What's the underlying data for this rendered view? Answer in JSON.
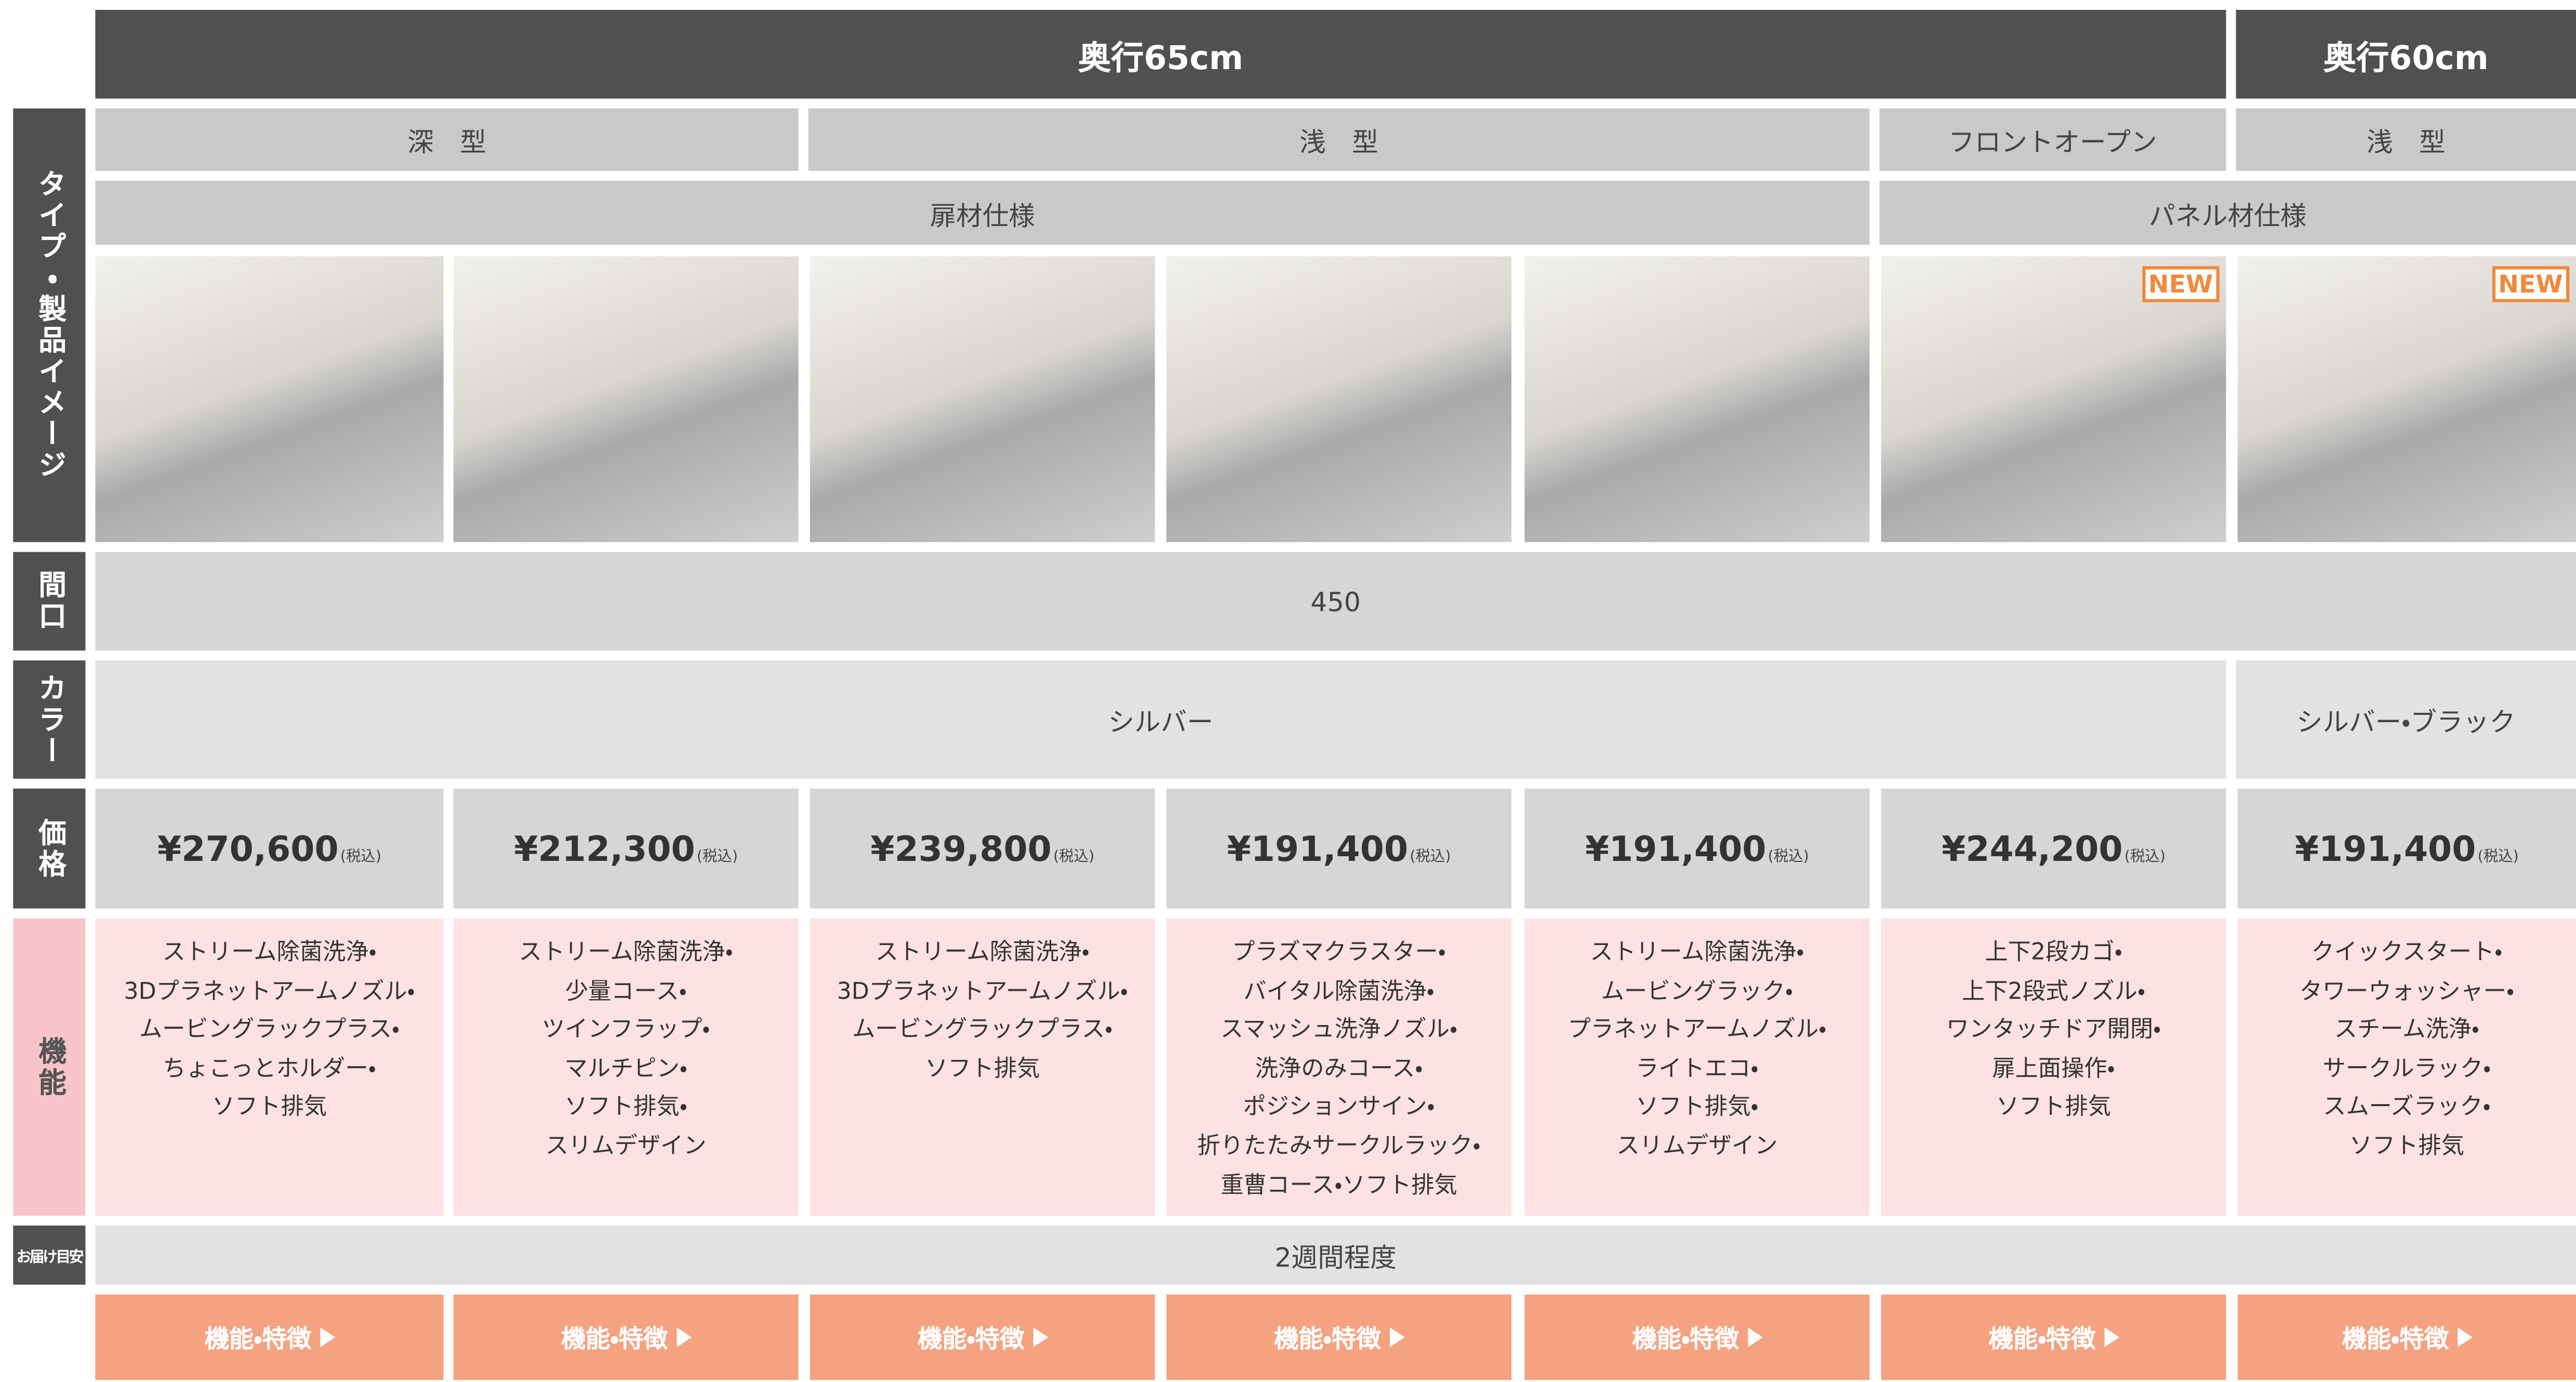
{
  "row_labels": [
    "タイプ・製品イメージ",
    "間口",
    "カラー",
    "価格",
    "機能",
    "お届け目安"
  ],
  "depths": [
    "奥行65cm",
    "奥行60cm"
  ],
  "types": [
    "深　型",
    "浅　型",
    "フロントオープン",
    "浅　型"
  ],
  "finishes": [
    "扉材仕様",
    "パネル材仕様"
  ],
  "width": "450",
  "colors": [
    "シルバー",
    "シルバー・ブラック"
  ],
  "delivery": "2週間程度",
  "products": [
    {
      "price": "¥270,600",
      "tax": "(税込)",
      "features": [
        "ストリーム除菌洗浄・",
        "3Dプラネットアームノズル・",
        "ムービングラックプラス・",
        "ちょこっとホルダー・",
        "ソフト排気"
      ],
      "button": "機能・特徴"
    },
    {
      "price": "¥212,300",
      "tax": "(税込)",
      "features": [
        "ストリーム除菌洗浄・",
        "少量コース・",
        "ツインフラップ・",
        "マルチピン・",
        "ソフト排気・",
        "スリムデザイン"
      ],
      "button": "機能・特徴"
    },
    {
      "price": "¥239,800",
      "tax": "(税込)",
      "features": [
        "ストリーム除菌洗浄・",
        "3Dプラネットアームノズル・",
        "ムービングラックプラス・",
        "ソフト排気"
      ],
      "button": "機能・特徴"
    },
    {
      "price": "¥191,400",
      "tax": "(税込)",
      "features": [
        "プラズマクラスター・",
        "バイタル除菌洗浄・",
        "スマッシュ洗浄ノズル・",
        "洗浄のみコース・",
        "ポジションサイン・",
        "折りたたみサークルラック・",
        "重曹コース・ソフト排気"
      ],
      "button": "機能・特徴"
    },
    {
      "price": "¥191,400",
      "tax": "(税込)",
      "features": [
        "ストリーム除菌洗浄・",
        "ムービングラック・",
        "プラネットアームノズル・",
        "ライトエコ・",
        "ソフト排気・",
        "スリムデザイン"
      ],
      "button": "機能・特徴"
    },
    {
      "price": "¥244,200",
      "tax": "(税込)",
      "badge": "NEW",
      "features": [
        "上下2段カゴ・",
        "上下2段式ノズル・",
        "ワンタッチドア開閉・",
        "扉上面操作・",
        "ソフト排気"
      ],
      "button": "機能・特徴"
    },
    {
      "price": "¥191,400",
      "tax": "(税込)",
      "badge": "NEW",
      "features": [
        "クイックスタート・",
        "タワーウォッシャー・",
        "スチーム洗浄・",
        "サークルラック・",
        "スムーズラック・",
        "ソフト排気"
      ],
      "button": "機能・特徴"
    }
  ]
}
